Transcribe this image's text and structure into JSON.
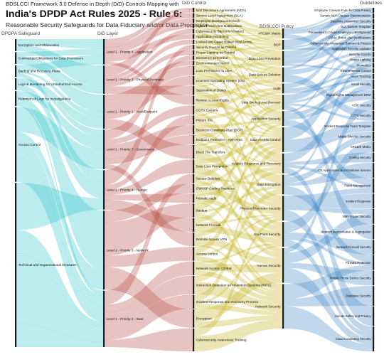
{
  "title": {
    "line1": "BDSLCCI Framework 3.0 Defense in Depth (DiD) Controls Mapping with",
    "line2": "India's DPDP Act Rules 2025 - Rule 6:",
    "line3": "Reasonable Security Safeguards for Data Fiduciary and/or Data Processor"
  },
  "column_headers": {
    "dpdpa": "DPDPA Safeguard",
    "did_layer": "DiD Layer",
    "did_control": "DiD Control",
    "bdslcci": "BDSLCCI Policy",
    "guidelines": "Guidelines"
  },
  "colors": {
    "dpdpa_flow": "#2fc5c9",
    "layer_flow": "#b3483f",
    "control_flow": "#c5b11d",
    "policy_flow": "#3f86c5",
    "node": "#1a1a1a"
  },
  "dpdpa": [
    {
      "label": "Encryption and Obfuscation",
      "weight": 4
    },
    {
      "label": "Contractual Obligations for Data Processors",
      "weight": 4
    },
    {
      "label": "Backup and Recovery Plans",
      "weight": 4
    },
    {
      "label": "Logs & Monitoring for Unauthorized Access",
      "weight": 4
    },
    {
      "label": "Retention of Logs for Investigations",
      "weight": 5
    },
    {
      "label": "Access Control",
      "weight": 25
    },
    {
      "label": "Technical and Organizational Measures",
      "weight": 55
    }
  ],
  "layers": [
    {
      "label": "Level 1 - Priority 4 - Application",
      "weight": 9
    },
    {
      "label": "Level 1 - Priority 3 - Physical Perimeter",
      "weight": 10
    },
    {
      "label": "Level 1 - Priority 1 - Host/Endpoint",
      "weight": 12
    },
    {
      "label": "Level 1 - Priority 7 - Governance",
      "weight": 14
    },
    {
      "label": "Level 1 - Priority 4 - Human",
      "weight": 14
    },
    {
      "label": "Level 2 - Priority 5 - Network",
      "weight": 28
    },
    {
      "label": "Level 1 - Priority 2 - Data",
      "weight": 20
    }
  ],
  "controls": [
    {
      "label": "Non Disclosure Agreement (NDA)",
      "weight": 1
    },
    {
      "label": "Service Level Agreement (SLA)",
      "weight": 1
    },
    {
      "label": "Employee Background Check",
      "weight": 1
    },
    {
      "label": "Cyber Threat Alert Notifications",
      "weight": 1
    },
    {
      "label": "Cybersecurity Banners / Posters",
      "weight": 1
    },
    {
      "label": "Application Hardening",
      "weight": 1
    },
    {
      "label": "Locked and Gated Bolted Steel Doors",
      "weight": 1
    },
    {
      "label": "Security Guards as Control",
      "weight": 1
    },
    {
      "label": "Proper Lighting as Control",
      "weight": 1
    },
    {
      "label": "Biometrics as Control",
      "weight": 1
    },
    {
      "label": "Environmental Control",
      "weight": 1
    },
    {
      "label": "Loss Permission to User",
      "weight": 2
    },
    {
      "label": "Licensed Operating System (OS)",
      "weight": 2
    },
    {
      "label": "Separation of Duties",
      "weight": 2
    },
    {
      "label": "Review Access Rights",
      "weight": 2
    },
    {
      "label": "CCTV Camera",
      "weight": 2
    },
    {
      "label": "Picture IDs",
      "weight": 2
    },
    {
      "label": "Business Continuity Plan (BCP)",
      "weight": 2
    },
    {
      "label": "Endpoint Protection - Anti-Virus",
      "weight": 2
    },
    {
      "label": "Block File Transfers",
      "weight": 3
    },
    {
      "label": "Data Loss Prevention",
      "weight": 3
    },
    {
      "label": "Secure Deletion",
      "weight": 2
    },
    {
      "label": "OWASP Coding Practices",
      "weight": 2
    },
    {
      "label": "Periodic Audit",
      "weight": 2
    },
    {
      "label": "Backup",
      "weight": 3
    },
    {
      "label": "Network Firewall",
      "weight": 3
    },
    {
      "label": "Remote Access VPN",
      "weight": 3
    },
    {
      "label": "Access control",
      "weight": 3
    },
    {
      "label": "Network Access Control",
      "weight": 3
    },
    {
      "label": "Instruction Detection & Prevention Systems (IDPS)",
      "weight": 4
    },
    {
      "label": "Incident Response and Recovery Process",
      "weight": 3
    },
    {
      "label": "Encryption",
      "weight": 4
    },
    {
      "label": "Cybersecurity Awareness Training",
      "weight": 5
    }
  ],
  "policies": [
    {
      "label": "ARC&IK Matrix",
      "weight": 2
    },
    {
      "label": "BCP",
      "weight": 2
    },
    {
      "label": "Data Loss Prevention",
      "weight": 3
    },
    {
      "label": "Data Secure Deletion",
      "weight": 3
    },
    {
      "label": "Audit",
      "weight": 2
    },
    {
      "label": "Data Backup And Recover",
      "weight": 3
    },
    {
      "label": "Application Security",
      "weight": 3
    },
    {
      "label": "Data Access Control",
      "weight": 5
    },
    {
      "label": "Incident Response and Recovery",
      "weight": 4
    },
    {
      "label": "Data Encryption",
      "weight": 4
    },
    {
      "label": "Physical Perimeter Security",
      "weight": 5
    },
    {
      "label": "EndPoint Security",
      "weight": 5
    },
    {
      "label": "Human Security",
      "weight": 7
    },
    {
      "label": "Network Security",
      "weight": 9
    }
  ],
  "guidelines": [
    {
      "label": "Employee Consent Form for Data Privacy",
      "weight": 1
    },
    {
      "label": "Sample NDA Clauses Documentation",
      "weight": 1
    },
    {
      "label": "Deepfake Prevention Security",
      "weight": 1
    },
    {
      "label": "SLA Sample Template",
      "weight": 1
    },
    {
      "label": "Parameters to Check Employee's Background",
      "weight": 1
    },
    {
      "label": "Cyber Threat Alert Notifications",
      "weight": 1
    },
    {
      "label": "Cybersecurity Awareness Banners & Posters",
      "weight": 1
    },
    {
      "label": "Application Security Updates",
      "weight": 1
    },
    {
      "label": "Security Guards",
      "weight": 1
    },
    {
      "label": "Proper Lighting",
      "weight": 1
    },
    {
      "label": "Biometrics",
      "weight": 1
    },
    {
      "label": "Environmental Control",
      "weight": 1
    },
    {
      "label": "Asset Tracking",
      "weight": 1
    },
    {
      "label": "Email Security",
      "weight": 2
    },
    {
      "label": "Digital Rights Management DRM",
      "weight": 2
    },
    {
      "label": "VOIP Security",
      "weight": 2
    },
    {
      "label": "CCTV Security",
      "weight": 2
    },
    {
      "label": "Incident Response Team Template",
      "weight": 2
    },
    {
      "label": "Maker Checker Security",
      "weight": 2
    },
    {
      "label": "ARC&IK Matrix",
      "weight": 2
    },
    {
      "label": "Coding Security",
      "weight": 2
    },
    {
      "label": "OS Applications and Database Servers",
      "weight": 3
    },
    {
      "label": "Patch Management",
      "weight": 3
    },
    {
      "label": "Incident Response",
      "weight": 3
    },
    {
      "label": "WiFi Router Security",
      "weight": 3
    },
    {
      "label": "Network segmentation & segregation",
      "weight": 3
    },
    {
      "label": "Network Firewall Security",
      "weight": 3
    },
    {
      "label": "Pll Data Protection",
      "weight": 3
    },
    {
      "label": "Mobile Phone Device Security",
      "weight": 3
    },
    {
      "label": "Database Security",
      "weight": 4
    },
    {
      "label": "Human Safety and Privacy",
      "weight": 4
    },
    {
      "label": "Cloud Computing Security",
      "weight": 5
    }
  ]
}
